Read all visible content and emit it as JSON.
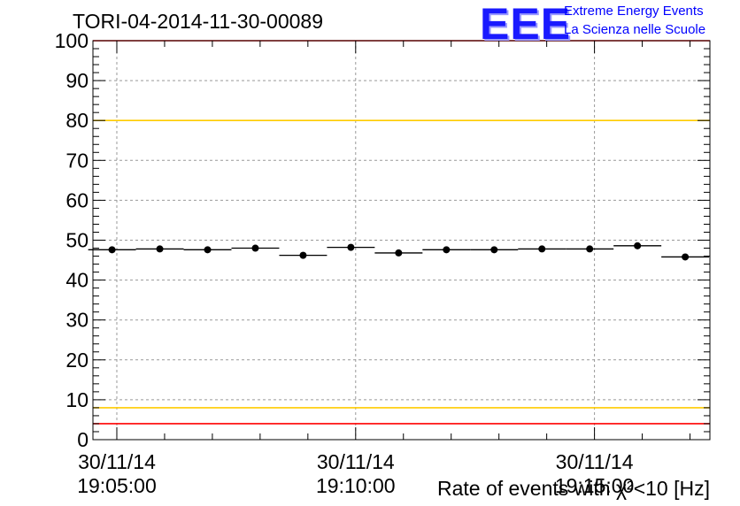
{
  "header": {
    "run_title": "TORI-04-2014-11-30-00089",
    "logo_text": "EEE",
    "logo_line1": "Extreme Energy Events",
    "logo_line2": "La Scienza nelle Scuole"
  },
  "chart_data": {
    "type": "scatter",
    "xlabel": "Rate of events with χ²<10 [Hz]",
    "ylim": [
      0,
      100
    ],
    "y_ticks": [
      "0",
      "10",
      "20",
      "30",
      "40",
      "50",
      "60",
      "70",
      "80",
      "90",
      "100"
    ],
    "x_ticks": [
      {
        "date": "30/11/14",
        "time": "19:05:00"
      },
      {
        "date": "30/11/14",
        "time": "19:10:00"
      },
      {
        "date": "30/11/14",
        "time": "19:15:00"
      }
    ],
    "grid": true,
    "reference_lines": [
      {
        "value": 100,
        "color": "#ff0000"
      },
      {
        "value": 80,
        "color": "#ffcc00"
      },
      {
        "value": 8,
        "color": "#ffcc00"
      },
      {
        "value": 4,
        "color": "#ff0000"
      }
    ],
    "series": [
      {
        "x": [
          "19:04:54",
          "19:05:54",
          "19:06:54",
          "19:07:54",
          "19:08:54",
          "19:09:54",
          "19:10:54",
          "19:11:54",
          "19:12:54",
          "19:13:54",
          "19:14:54",
          "19:15:54",
          "19:16:54"
        ],
        "values": [
          47.6,
          47.8,
          47.6,
          48.0,
          46.2,
          48.2,
          46.8,
          47.6,
          47.6,
          47.8,
          47.8,
          48.6,
          45.8
        ],
        "color": "#000000"
      }
    ]
  }
}
